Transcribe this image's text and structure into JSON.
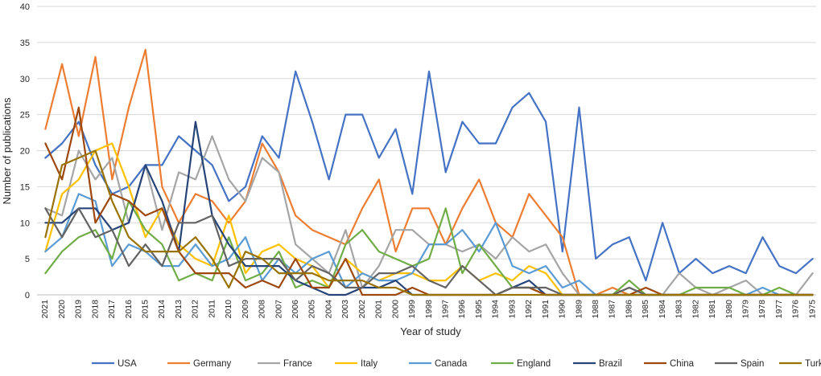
{
  "chart_data": {
    "type": "line",
    "title": "",
    "xlabel": "Year of study",
    "ylabel": "Number of publications",
    "ylim": [
      0,
      40
    ],
    "yticks": [
      0,
      5,
      10,
      15,
      20,
      25,
      30,
      35,
      40
    ],
    "grid": true,
    "legend_position": "bottom",
    "categories": [
      "2021",
      "2020",
      "2019",
      "2018",
      "2017",
      "2016",
      "2015",
      "2014",
      "2013",
      "2012",
      "2011",
      "2010",
      "2009",
      "2008",
      "2007",
      "2006",
      "2005",
      "2004",
      "2003",
      "2002",
      "2001",
      "2000",
      "1999",
      "1998",
      "1997",
      "1996",
      "1995",
      "1994",
      "1993",
      "1992",
      "1991",
      "1990",
      "1989",
      "1988",
      "1987",
      "1986",
      "1985",
      "1984",
      "1983",
      "1982",
      "1981",
      "1980",
      "1979",
      "1978",
      "1977",
      "1976",
      "1975"
    ],
    "series": [
      {
        "name": "USA",
        "color": "#4472C4",
        "values": [
          19,
          21,
          24,
          18,
          14,
          15,
          18,
          18,
          22,
          20,
          18,
          13,
          15,
          22,
          19,
          31,
          24,
          16,
          25,
          25,
          19,
          23,
          14,
          31,
          17,
          24,
          21,
          21,
          26,
          28,
          24,
          6,
          26,
          5,
          7,
          8,
          2,
          10,
          3,
          5,
          3,
          4,
          3,
          8,
          4,
          3,
          5
        ]
      },
      {
        "name": "Germany",
        "color": "#ED7D31",
        "values": [
          23,
          32,
          22,
          33,
          16,
          26,
          34,
          15,
          10,
          14,
          13,
          10,
          13,
          21,
          17,
          11,
          9,
          8,
          7,
          12,
          16,
          6,
          12,
          12,
          7,
          12,
          16,
          10,
          8,
          14,
          11,
          8,
          0,
          0,
          1,
          0,
          0,
          0,
          0,
          0,
          0,
          0,
          0,
          0,
          0,
          0,
          0
        ]
      },
      {
        "name": "France",
        "color": "#A5A5A5",
        "values": [
          12,
          11,
          20,
          16,
          19,
          10,
          18,
          9,
          17,
          16,
          22,
          16,
          13,
          19,
          17,
          7,
          5,
          3,
          9,
          1,
          4,
          9,
          9,
          7,
          7,
          6,
          7,
          5,
          8,
          6,
          7,
          3,
          0,
          0,
          0,
          1,
          0,
          0,
          3,
          1,
          0,
          1,
          2,
          0,
          0,
          0,
          3
        ]
      },
      {
        "name": "Italy",
        "color": "#FFC000",
        "values": [
          6,
          14,
          16,
          20,
          21,
          15,
          8,
          12,
          7,
          5,
          4,
          11,
          3,
          6,
          7,
          5,
          4,
          1,
          5,
          3,
          2,
          3,
          3,
          2,
          2,
          4,
          2,
          3,
          2,
          4,
          3,
          0,
          0,
          0,
          0,
          0,
          0,
          0,
          0,
          0,
          0,
          0,
          0,
          0,
          0,
          0,
          0
        ]
      },
      {
        "name": "Canada",
        "color": "#5B9BD5",
        "values": [
          6,
          8,
          14,
          13,
          4,
          7,
          6,
          4,
          4,
          7,
          4,
          5,
          8,
          2,
          5,
          3,
          5,
          6,
          1,
          3,
          2,
          2,
          3,
          7,
          7,
          9,
          6,
          10,
          4,
          3,
          4,
          1,
          2,
          0,
          0,
          0,
          0,
          0,
          0,
          0,
          0,
          0,
          0,
          1,
          0,
          0,
          0
        ]
      },
      {
        "name": "England",
        "color": "#70AD47",
        "values": [
          3,
          6,
          8,
          9,
          5,
          13,
          9,
          7,
          2,
          3,
          2,
          8,
          2,
          3,
          6,
          1,
          2,
          1,
          7,
          9,
          6,
          5,
          4,
          5,
          12,
          3,
          7,
          4,
          1,
          1,
          0,
          0,
          0,
          0,
          0,
          2,
          0,
          0,
          0,
          1,
          1,
          1,
          0,
          0,
          1,
          0,
          0
        ]
      },
      {
        "name": "Brazil",
        "color": "#264478",
        "values": [
          10,
          10,
          12,
          12,
          9,
          10,
          18,
          13,
          6,
          24,
          11,
          7,
          4,
          4,
          4,
          2,
          1,
          0,
          0,
          1,
          1,
          2,
          0,
          0,
          0,
          0,
          0,
          0,
          1,
          2,
          0,
          0,
          0,
          0,
          0,
          0,
          0,
          0,
          0,
          0,
          0,
          0,
          0,
          0,
          0,
          0,
          0
        ]
      },
      {
        "name": "China",
        "color": "#9E480E",
        "values": [
          21,
          16,
          26,
          10,
          14,
          13,
          11,
          12,
          6,
          3,
          3,
          3,
          1,
          2,
          1,
          5,
          1,
          1,
          5,
          0,
          0,
          0,
          1,
          0,
          0,
          0,
          0,
          0,
          1,
          1,
          0,
          0,
          0,
          0,
          0,
          0,
          1,
          0,
          0,
          0,
          0,
          0,
          0,
          0,
          0,
          0,
          0
        ]
      },
      {
        "name": "Spain",
        "color": "#636363",
        "values": [
          12,
          8,
          12,
          8,
          9,
          4,
          7,
          4,
          10,
          10,
          11,
          4,
          5,
          5,
          5,
          2,
          4,
          3,
          1,
          1,
          3,
          3,
          4,
          2,
          1,
          4,
          2,
          0,
          1,
          1,
          1,
          0,
          0,
          0,
          0,
          1,
          0,
          0,
          0,
          0,
          0,
          0,
          0,
          0,
          0,
          0,
          0
        ]
      },
      {
        "name": "Turkey",
        "color": "#997300",
        "values": [
          8,
          18,
          19,
          20,
          13,
          8,
          6,
          6,
          6,
          8,
          5,
          1,
          6,
          5,
          3,
          3,
          3,
          2,
          2,
          2,
          1,
          1,
          0,
          0,
          0,
          0,
          0,
          0,
          0,
          0,
          0,
          0,
          0,
          0,
          0,
          0,
          0,
          0,
          0,
          0,
          0,
          0,
          0,
          0,
          0,
          0,
          0
        ]
      }
    ]
  }
}
